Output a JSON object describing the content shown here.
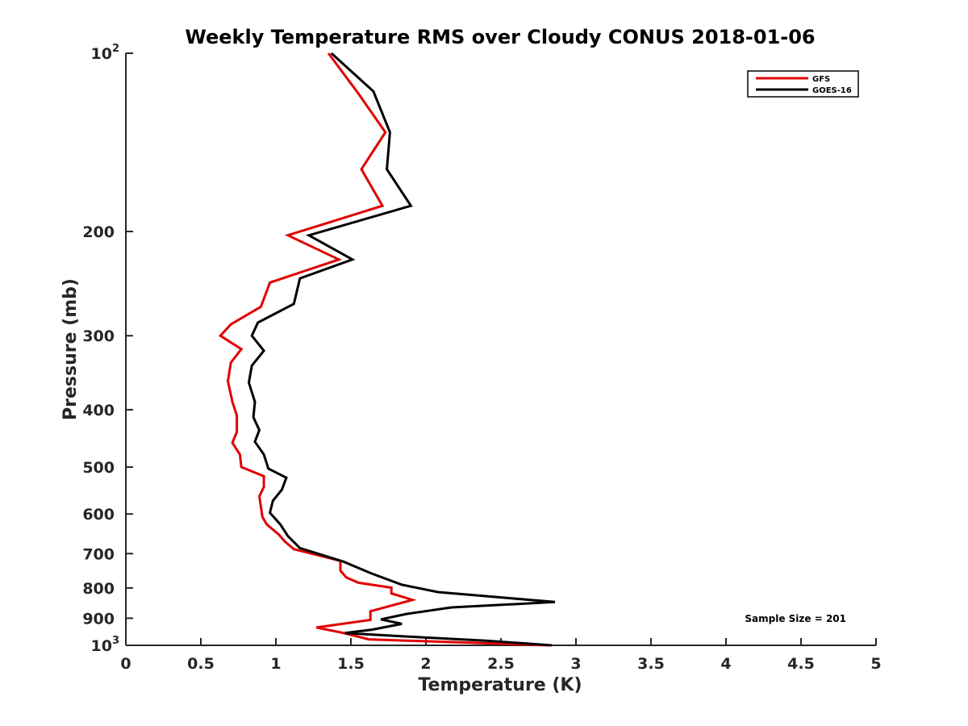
{
  "chart_data": {
    "type": "line",
    "title": "Weekly Temperature RMS over Cloudy CONUS 2018-01-06",
    "xlabel": "Temperature (K)",
    "ylabel": "Pressure (mb)",
    "xlim": [
      0,
      5
    ],
    "ylim": [
      100,
      1000
    ],
    "y_scale": "log",
    "y_reversed": true,
    "x_ticks": [
      0,
      0.5,
      1,
      1.5,
      2,
      2.5,
      3,
      3.5,
      4,
      4.5,
      5
    ],
    "x_tick_labels": [
      "0",
      "0.5",
      "1",
      "1.5",
      "2",
      "2.5",
      "3",
      "3.5",
      "4",
      "4.5",
      "5"
    ],
    "y_ticks": [
      {
        "value": 100,
        "base": "10",
        "exp": "2",
        "label": ""
      },
      {
        "value": 200,
        "label": "200"
      },
      {
        "value": 300,
        "label": "300"
      },
      {
        "value": 400,
        "label": "400"
      },
      {
        "value": 500,
        "label": "500"
      },
      {
        "value": 600,
        "label": "600"
      },
      {
        "value": 700,
        "label": "700"
      },
      {
        "value": 800,
        "label": "800"
      },
      {
        "value": 900,
        "label": "900"
      },
      {
        "value": 1000,
        "base": "10",
        "exp": "3",
        "label": ""
      }
    ],
    "grid": false,
    "legend_position": "top-right",
    "series": [
      {
        "name": "GFS",
        "color": "#e00000",
        "points": [
          {
            "x": 1.35,
            "y": 100
          },
          {
            "x": 1.55,
            "y": 117
          },
          {
            "x": 1.73,
            "y": 136
          },
          {
            "x": 1.57,
            "y": 157
          },
          {
            "x": 1.71,
            "y": 181
          },
          {
            "x": 1.08,
            "y": 203
          },
          {
            "x": 1.42,
            "y": 223
          },
          {
            "x": 0.96,
            "y": 244
          },
          {
            "x": 0.9,
            "y": 268
          },
          {
            "x": 0.7,
            "y": 287
          },
          {
            "x": 0.63,
            "y": 300
          },
          {
            "x": 0.77,
            "y": 316
          },
          {
            "x": 0.7,
            "y": 333
          },
          {
            "x": 0.68,
            "y": 358
          },
          {
            "x": 0.71,
            "y": 388
          },
          {
            "x": 0.74,
            "y": 409
          },
          {
            "x": 0.74,
            "y": 436
          },
          {
            "x": 0.71,
            "y": 455
          },
          {
            "x": 0.76,
            "y": 476
          },
          {
            "x": 0.77,
            "y": 500
          },
          {
            "x": 0.92,
            "y": 518
          },
          {
            "x": 0.92,
            "y": 540
          },
          {
            "x": 0.89,
            "y": 560
          },
          {
            "x": 0.9,
            "y": 583
          },
          {
            "x": 0.91,
            "y": 607
          },
          {
            "x": 0.94,
            "y": 625
          },
          {
            "x": 1.02,
            "y": 650
          },
          {
            "x": 1.06,
            "y": 668
          },
          {
            "x": 1.12,
            "y": 688
          },
          {
            "x": 1.43,
            "y": 720
          },
          {
            "x": 1.43,
            "y": 748
          },
          {
            "x": 1.47,
            "y": 768
          },
          {
            "x": 1.55,
            "y": 784
          },
          {
            "x": 1.77,
            "y": 799
          },
          {
            "x": 1.77,
            "y": 817
          },
          {
            "x": 1.91,
            "y": 838
          },
          {
            "x": 1.63,
            "y": 876
          },
          {
            "x": 1.63,
            "y": 906
          },
          {
            "x": 1.27,
            "y": 933
          },
          {
            "x": 1.45,
            "y": 953
          },
          {
            "x": 1.62,
            "y": 977
          },
          {
            "x": 2.82,
            "y": 1000
          }
        ]
      },
      {
        "name": "GOES-16",
        "color": "#000000",
        "points": [
          {
            "x": 1.37,
            "y": 100
          },
          {
            "x": 1.65,
            "y": 116
          },
          {
            "x": 1.76,
            "y": 136
          },
          {
            "x": 1.74,
            "y": 157
          },
          {
            "x": 1.9,
            "y": 181
          },
          {
            "x": 1.22,
            "y": 203
          },
          {
            "x": 1.51,
            "y": 223
          },
          {
            "x": 1.16,
            "y": 240
          },
          {
            "x": 1.12,
            "y": 265
          },
          {
            "x": 0.88,
            "y": 285
          },
          {
            "x": 0.84,
            "y": 300
          },
          {
            "x": 0.92,
            "y": 318
          },
          {
            "x": 0.84,
            "y": 337
          },
          {
            "x": 0.82,
            "y": 360
          },
          {
            "x": 0.86,
            "y": 388
          },
          {
            "x": 0.85,
            "y": 412
          },
          {
            "x": 0.89,
            "y": 433
          },
          {
            "x": 0.86,
            "y": 453
          },
          {
            "x": 0.92,
            "y": 476
          },
          {
            "x": 0.95,
            "y": 503
          },
          {
            "x": 1.07,
            "y": 521
          },
          {
            "x": 1.04,
            "y": 546
          },
          {
            "x": 0.98,
            "y": 570
          },
          {
            "x": 0.96,
            "y": 597
          },
          {
            "x": 1.03,
            "y": 625
          },
          {
            "x": 1.08,
            "y": 654
          },
          {
            "x": 1.16,
            "y": 685
          },
          {
            "x": 1.45,
            "y": 722
          },
          {
            "x": 1.63,
            "y": 755
          },
          {
            "x": 1.84,
            "y": 790
          },
          {
            "x": 2.08,
            "y": 813
          },
          {
            "x": 2.86,
            "y": 845
          },
          {
            "x": 2.17,
            "y": 863
          },
          {
            "x": 1.87,
            "y": 885
          },
          {
            "x": 1.7,
            "y": 904
          },
          {
            "x": 1.84,
            "y": 920
          },
          {
            "x": 1.64,
            "y": 941
          },
          {
            "x": 1.46,
            "y": 953
          },
          {
            "x": 1.99,
            "y": 970
          },
          {
            "x": 2.4,
            "y": 982
          },
          {
            "x": 2.84,
            "y": 1000
          }
        ]
      }
    ],
    "annotations": [
      {
        "text": "Sample Size = 201"
      }
    ]
  }
}
